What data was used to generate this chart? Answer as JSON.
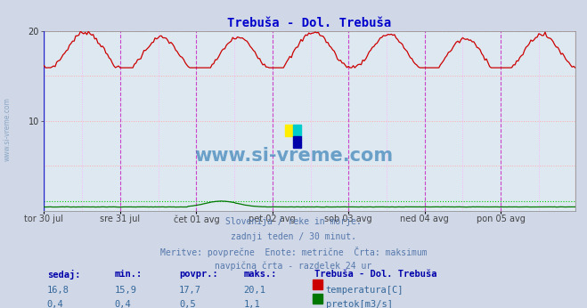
{
  "title": "Trebuša - Dol. Trebuša",
  "title_color": "#0000cc",
  "bg_color": "#d0d8e8",
  "plot_bg_color": "#dde8f0",
  "x_labels": [
    "tor 30 jul",
    "sre 31 jul",
    "čet 01 avg",
    "pet 02 avg",
    "sob 03 avg",
    "ned 04 avg",
    "pon 05 avg"
  ],
  "y_min": 0,
  "y_max": 20,
  "y_ticks": [
    10,
    20
  ],
  "grid_color_h": "#ffaaaa",
  "grid_color_v": "#ffaaff",
  "vline_solid_color": "#cc44cc",
  "hline_max_temp_color": "#ff0000",
  "hline_max_flow_color": "#00cc00",
  "temp_color": "#cc0000",
  "flow_color": "#007700",
  "watermark_text": "www.si-vreme.com",
  "watermark_color": "#4488bb",
  "subtitle_lines": [
    "Slovenija / reke in morje.",
    "zadnji teden / 30 minut.",
    "Meritve: povprečne  Enote: metrične  Črta: maksimum",
    "navpična črta - razdelek 24 ur"
  ],
  "table_headers": [
    "sedaj:",
    "min.:",
    "povpr.:",
    "maks.:",
    "Trebuša - Dol. Trebuša"
  ],
  "table_row1": [
    "16,8",
    "15,9",
    "17,7",
    "20,1",
    "temperatura[C]"
  ],
  "table_row2": [
    "0,4",
    "0,4",
    "0,5",
    "1,1",
    "pretok[m3/s]"
  ],
  "legend_colors": [
    "#cc0000",
    "#007700"
  ],
  "n_points": 336,
  "temp_max_val": 20.1,
  "flow_max_val": 1.1,
  "flow_display_max": 1.1,
  "y_axis_max": 20
}
